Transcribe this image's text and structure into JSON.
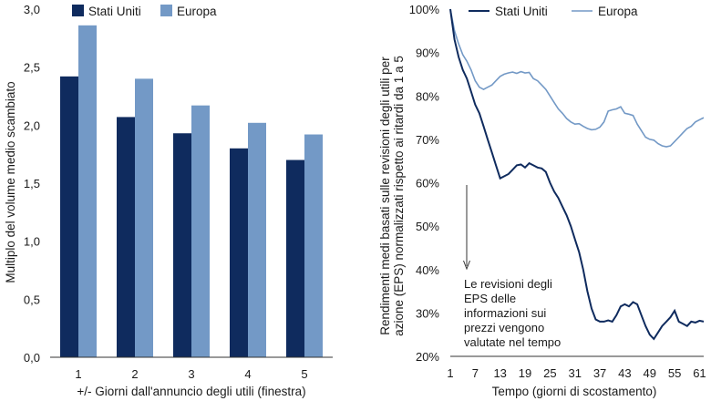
{
  "colors": {
    "us": "#0f2b5e",
    "europe": "#7399c6",
    "axis": "#333333",
    "text": "#1a1a1a"
  },
  "chart_data": [
    {
      "type": "bar",
      "xlabel": "+/- Giorni dall'annuncio degli utili (finestra)",
      "ylabel": "Multiplo del volume medio scambiato",
      "categories": [
        "1",
        "2",
        "3",
        "4",
        "5"
      ],
      "series": [
        {
          "name": "Stati Uniti",
          "values": [
            2.42,
            2.07,
            1.93,
            1.8,
            1.7
          ]
        },
        {
          "name": "Europa",
          "values": [
            2.86,
            2.4,
            2.17,
            2.02,
            1.92
          ]
        }
      ],
      "ylim": [
        0,
        3.0
      ],
      "yticks": [
        0,
        0.5,
        1.0,
        1.5,
        2.0,
        2.5,
        3.0
      ],
      "ytick_labels": [
        "0,0",
        "0,5",
        "1,0",
        "1,5",
        "2,0",
        "2,5",
        "3,0"
      ],
      "legend_position": "top-left",
      "grid": false
    },
    {
      "type": "line",
      "xlabel": "Tempo (giorni di scostamento)",
      "ylabel": "Rendimenti medi basati sulle revisioni degli utili per azione (EPS) normalizzati rispetto ai ritardi da 1 a 5",
      "ylim": [
        20,
        100
      ],
      "xlim": [
        1,
        62
      ],
      "yticks": [
        20,
        30,
        40,
        50,
        60,
        70,
        80,
        90,
        100
      ],
      "ytick_labels": [
        "20%",
        "30%",
        "40%",
        "50%",
        "60%",
        "70%",
        "80%",
        "90%",
        "100%"
      ],
      "xticks": [
        1,
        7,
        13,
        19,
        25,
        31,
        37,
        43,
        49,
        55,
        61
      ],
      "xtick_labels": [
        "1",
        "7",
        "13",
        "19",
        "25",
        "31",
        "37",
        "43",
        "49",
        "55",
        "61"
      ],
      "legend_position": "top",
      "grid": false,
      "series": [
        {
          "name": "Stati Uniti",
          "x": [
            1,
            2,
            3,
            4,
            5,
            6,
            7,
            8,
            9,
            10,
            11,
            12,
            13,
            14,
            15,
            16,
            17,
            18,
            19,
            20,
            21,
            22,
            23,
            24,
            25,
            26,
            27,
            28,
            29,
            30,
            31,
            32,
            33,
            34,
            35,
            36,
            37,
            38,
            39,
            40,
            41,
            42,
            43,
            44,
            45,
            46,
            47,
            48,
            49,
            50,
            51,
            52,
            53,
            54,
            55,
            56,
            57,
            58,
            59,
            60,
            61,
            62
          ],
          "values": [
            100,
            93,
            89,
            86,
            84,
            81,
            78,
            76,
            73,
            70,
            67,
            64,
            61,
            61.5,
            62,
            63,
            64,
            64.2,
            63.5,
            64.5,
            64,
            63.5,
            63.3,
            62.5,
            60,
            58,
            56.5,
            54.5,
            52.5,
            50,
            47,
            44,
            40,
            35,
            31,
            28.5,
            28,
            28,
            28.3,
            28,
            29.5,
            31.5,
            32,
            31.5,
            32.5,
            32,
            29.5,
            27,
            25,
            24,
            25.5,
            27,
            28,
            29,
            30.5,
            28,
            27.5,
            27,
            28,
            27.8,
            28.2,
            28
          ]
        },
        {
          "name": "Europa",
          "x": [
            1,
            2,
            3,
            4,
            5,
            6,
            7,
            8,
            9,
            10,
            11,
            12,
            13,
            14,
            15,
            16,
            17,
            18,
            19,
            20,
            21,
            22,
            23,
            24,
            25,
            26,
            27,
            28,
            29,
            30,
            31,
            32,
            33,
            34,
            35,
            36,
            37,
            38,
            39,
            40,
            41,
            42,
            43,
            44,
            45,
            46,
            47,
            48,
            49,
            50,
            51,
            52,
            53,
            54,
            55,
            56,
            57,
            58,
            59,
            60,
            61,
            62
          ],
          "values": [
            100,
            95,
            92,
            89.5,
            88,
            86,
            83.5,
            82,
            81.5,
            82,
            82.5,
            83.5,
            84.5,
            85,
            85.3,
            85.5,
            85.2,
            85.6,
            85.3,
            85.4,
            84,
            83.5,
            82.5,
            81.5,
            80,
            78.5,
            77,
            76,
            74.8,
            74,
            73.5,
            73.6,
            73,
            72.5,
            72.2,
            72.3,
            72.8,
            74,
            76.5,
            76.8,
            77,
            77.5,
            76,
            75.8,
            75.5,
            73.5,
            72,
            70.5,
            70,
            69.8,
            69,
            68.5,
            68.3,
            68.5,
            69.5,
            70.5,
            71.5,
            72.5,
            73,
            74,
            74.5,
            75
          ]
        }
      ],
      "annotation": {
        "lines": [
          "Le revisioni degli",
          "EPS delle",
          "informazioni sui",
          "prezzi vengono",
          "valutate nel tempo"
        ],
        "x": 4
      }
    }
  ]
}
